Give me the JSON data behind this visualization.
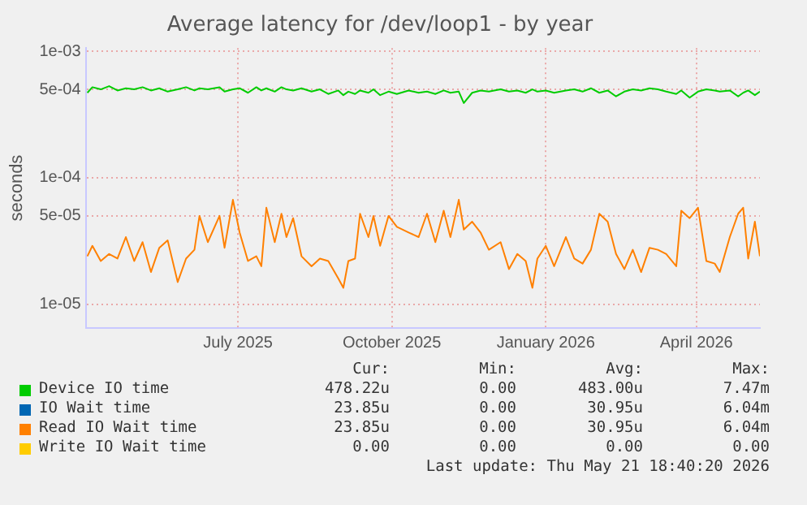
{
  "chart_data": {
    "type": "line",
    "title": "Average latency for /dev/loop1 - by year",
    "ylabel": "seconds",
    "x": [
      "2025-04-02",
      "2025-04-05",
      "2025-04-10",
      "2025-04-15",
      "2025-04-20",
      "2025-04-25",
      "2025-04-30",
      "2025-05-05",
      "2025-05-10",
      "2025-05-15",
      "2025-05-20",
      "2025-05-26",
      "2025-05-31",
      "2025-06-05",
      "2025-06-08",
      "2025-06-13",
      "2025-06-20",
      "2025-06-23",
      "2025-06-28",
      "2025-07-02",
      "2025-07-07",
      "2025-07-12",
      "2025-07-15",
      "2025-07-18",
      "2025-07-23",
      "2025-07-27",
      "2025-07-30",
      "2025-08-03",
      "2025-08-08",
      "2025-08-14",
      "2025-08-19",
      "2025-08-24",
      "2025-08-30",
      "2025-09-02",
      "2025-09-05",
      "2025-09-09",
      "2025-09-12",
      "2025-09-17",
      "2025-09-20",
      "2025-09-24",
      "2025-09-29",
      "2025-10-04",
      "2025-10-11",
      "2025-10-17",
      "2025-10-22",
      "2025-10-27",
      "2025-11-01",
      "2025-11-05",
      "2025-11-10",
      "2025-11-13",
      "2025-11-18",
      "2025-11-23",
      "2025-11-28",
      "2025-12-05",
      "2025-12-10",
      "2025-12-15",
      "2025-12-20",
      "2025-12-24",
      "2025-12-27",
      "2026-01-01",
      "2026-01-06",
      "2026-01-13",
      "2026-01-18",
      "2026-01-23",
      "2026-01-28",
      "2026-02-02",
      "2026-02-07",
      "2026-02-12",
      "2026-02-17",
      "2026-02-22",
      "2026-02-27",
      "2026-03-04",
      "2026-03-09",
      "2026-03-14",
      "2026-03-20",
      "2026-03-23",
      "2026-03-28",
      "2026-04-02",
      "2026-04-07",
      "2026-04-12",
      "2026-04-15",
      "2026-04-21",
      "2026-04-26",
      "2026-04-29",
      "2026-05-02",
      "2026-05-06",
      "2026-05-09"
    ],
    "series": [
      {
        "name": "Device IO time",
        "color": "#00cc00",
        "values": [
          0.00047,
          0.00052,
          0.0005,
          0.00053,
          0.00049,
          0.00051,
          0.0005,
          0.00052,
          0.00049,
          0.00051,
          0.00048,
          0.0005,
          0.00052,
          0.00049,
          0.00051,
          0.0005,
          0.00052,
          0.00048,
          0.0005,
          0.00051,
          0.00047,
          0.00052,
          0.00049,
          0.00051,
          0.00048,
          0.00052,
          0.0005,
          0.00049,
          0.00051,
          0.00048,
          0.0005,
          0.00046,
          0.00049,
          0.00045,
          0.00048,
          0.00046,
          0.00049,
          0.00047,
          0.0005,
          0.00045,
          0.00048,
          0.00046,
          0.00049,
          0.00047,
          0.00048,
          0.00046,
          0.00049,
          0.00047,
          0.00048,
          0.00039,
          0.00047,
          0.00049,
          0.00048,
          0.0005,
          0.00048,
          0.00049,
          0.00047,
          0.0005,
          0.00048,
          0.00049,
          0.00047,
          0.00049,
          0.0005,
          0.00048,
          0.00051,
          0.00047,
          0.00049,
          0.00044,
          0.00048,
          0.0005,
          0.00049,
          0.00051,
          0.0005,
          0.00048,
          0.00046,
          0.00049,
          0.00043,
          0.00048,
          0.0005,
          0.00049,
          0.00048,
          0.00049,
          0.00044,
          0.00047,
          0.00049,
          0.00045,
          0.00048
        ]
      },
      {
        "name": "IO Wait time",
        "color": "#0066b3",
        "values": [
          null,
          null,
          null,
          null,
          null,
          null,
          null,
          null,
          null,
          null,
          null,
          null,
          null,
          null,
          null,
          null,
          null,
          null,
          null,
          null,
          null,
          null,
          null,
          null,
          null,
          null,
          null,
          null,
          null,
          null,
          null,
          null,
          null,
          null,
          null,
          null,
          null,
          null,
          null,
          null,
          null,
          null,
          null,
          null,
          null,
          null,
          null,
          null,
          null,
          null,
          null,
          null,
          null,
          null,
          null,
          null,
          null,
          null,
          null,
          null,
          null,
          null,
          null,
          null,
          null,
          null,
          null,
          null,
          null,
          null,
          null,
          null,
          null,
          null,
          null,
          null,
          null,
          null,
          null,
          null,
          null,
          null,
          null,
          null,
          null,
          null,
          null
        ]
      },
      {
        "name": "Read IO Wait time",
        "color": "#ff8000",
        "values": [
          2.4e-05,
          2.9e-05,
          2.2e-05,
          2.5e-05,
          2.3e-05,
          3.4e-05,
          2.2e-05,
          3.1e-05,
          1.8e-05,
          2.8e-05,
          3.2e-05,
          1.5e-05,
          2.3e-05,
          2.7e-05,
          5e-05,
          3.1e-05,
          5e-05,
          2.8e-05,
          6.7e-05,
          3.7e-05,
          2.2e-05,
          2.4e-05,
          2e-05,
          5.8e-05,
          3.1e-05,
          5.2e-05,
          3.4e-05,
          4.8e-05,
          2.4e-05,
          2e-05,
          2.3e-05,
          2.2e-05,
          1.6e-05,
          1.35e-05,
          2.2e-05,
          2.3e-05,
          5.2e-05,
          3.4e-05,
          5e-05,
          2.9e-05,
          5e-05,
          4.1e-05,
          3.7e-05,
          3.4e-05,
          5.2e-05,
          3.1e-05,
          5.5e-05,
          3.4e-05,
          6.7e-05,
          3.9e-05,
          4.5e-05,
          3.7e-05,
          2.7e-05,
          3.1e-05,
          1.9e-05,
          2.5e-05,
          2.2e-05,
          1.35e-05,
          2.3e-05,
          2.9e-05,
          2e-05,
          3.4e-05,
          2.3e-05,
          2.1e-05,
          2.7e-05,
          5.2e-05,
          4.5e-05,
          2.5e-05,
          1.9e-05,
          2.7e-05,
          1.8e-05,
          2.8e-05,
          2.7e-05,
          2.5e-05,
          2e-05,
          5.5e-05,
          4.8e-05,
          5.8e-05,
          2.2e-05,
          2.1e-05,
          1.8e-05,
          3.4e-05,
          5.2e-05,
          5.8e-05,
          2.3e-05,
          4.5e-05,
          2.4e-05
        ]
      },
      {
        "name": "Write IO Wait time",
        "color": "#ffcc00",
        "values": [
          null,
          null,
          null,
          null,
          null,
          null,
          null,
          null,
          null,
          null,
          null,
          null,
          null,
          null,
          null,
          null,
          null,
          null,
          null,
          null,
          null,
          null,
          null,
          null,
          null,
          null,
          null,
          null,
          null,
          null,
          null,
          null,
          null,
          null,
          null,
          null,
          null,
          null,
          null,
          null,
          null,
          null,
          null,
          null,
          null,
          null,
          null,
          null,
          null,
          null,
          null,
          null,
          null,
          null,
          null,
          null,
          null,
          null,
          null,
          null,
          null,
          null,
          null,
          null,
          null,
          null,
          null,
          null,
          null,
          null,
          null,
          null,
          null,
          null,
          null,
          null,
          null,
          null,
          null,
          null,
          null,
          null,
          null,
          null,
          null,
          null,
          null
        ]
      }
    ],
    "xlim": [
      "2025-04-01",
      "2026-05-09"
    ],
    "xticks": [
      {
        "value": "2025-07-01",
        "label": "July 2025"
      },
      {
        "value": "2025-10-01",
        "label": "October 2025"
      },
      {
        "value": "2026-01-01",
        "label": "January 2026"
      },
      {
        "value": "2026-04-01",
        "label": "April 2026"
      }
    ],
    "log": "y",
    "ylim": [
      6.5e-06,
      0.00106
    ],
    "yticks": [
      {
        "value": 1e-05,
        "label": "1e-05"
      },
      {
        "value": 5e-05,
        "label": "5e-05"
      },
      {
        "value": 0.0001,
        "label": "1e-04"
      },
      {
        "value": 0.0005,
        "label": "5e-04"
      },
      {
        "value": 0.001,
        "label": "1e-03"
      }
    ],
    "grid": true,
    "legend": "bottom",
    "marker": "none",
    "line_style": "solid",
    "annotations": [
      "Cur:",
      "Min:",
      "Avg:",
      "Max:",
      "478.22u",
      "0.00",
      "483.00u",
      "7.47m",
      "23.85u",
      "0.00",
      "30.95u",
      "6.04m",
      "23.85u",
      "0.00",
      "30.95u",
      "6.04m",
      "0.00",
      "0.00",
      "0.00",
      "0.00",
      "Last update: Thu May 21 18:40:20 2026"
    ]
  }
}
